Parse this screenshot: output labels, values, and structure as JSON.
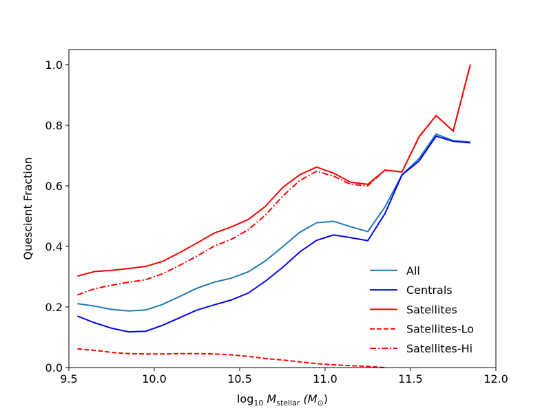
{
  "chart_data": {
    "type": "line",
    "xlabel": [
      "log",
      "10",
      " M",
      "stellar",
      " (M",
      "⊙",
      ")"
    ],
    "ylabel": "Quescient Fraction",
    "x": [
      9.55,
      9.65,
      9.75,
      9.85,
      9.95,
      10.05,
      10.15,
      10.25,
      10.35,
      10.45,
      10.55,
      10.65,
      10.75,
      10.85,
      10.95,
      11.05,
      11.15,
      11.25,
      11.35,
      11.45,
      11.55,
      11.65,
      11.75,
      11.85
    ],
    "series": [
      {
        "name": "All",
        "color": "#1f77b4",
        "style": "solid",
        "values": [
          0.211,
          0.203,
          0.192,
          0.187,
          0.19,
          0.209,
          0.235,
          0.262,
          0.282,
          0.295,
          0.316,
          0.352,
          0.398,
          0.446,
          0.478,
          0.483,
          0.465,
          0.449,
          0.53,
          0.636,
          0.69,
          0.771,
          0.749,
          0.745
        ]
      },
      {
        "name": "Centrals",
        "color": "#0000ff",
        "style": "solid",
        "values": [
          0.17,
          0.148,
          0.13,
          0.118,
          0.12,
          0.14,
          0.165,
          0.19,
          0.207,
          0.223,
          0.246,
          0.285,
          0.33,
          0.381,
          0.42,
          0.438,
          0.429,
          0.419,
          0.508,
          0.636,
          0.682,
          0.764,
          0.747,
          0.742
        ]
      },
      {
        "name": "Satellites",
        "color": "#ff0000",
        "style": "solid",
        "values": [
          0.302,
          0.317,
          0.321,
          0.327,
          0.334,
          0.351,
          0.38,
          0.411,
          0.444,
          0.464,
          0.489,
          0.532,
          0.594,
          0.636,
          0.662,
          0.642,
          0.612,
          0.605,
          0.652,
          0.646,
          0.762,
          0.832,
          0.781,
          1.0
        ]
      },
      {
        "name": "Satellites-Lo",
        "color": "#ff0000",
        "style": "dashed",
        "values": [
          0.062,
          0.057,
          0.05,
          0.046,
          0.045,
          0.045,
          0.046,
          0.046,
          0.045,
          0.042,
          0.037,
          0.03,
          0.025,
          0.019,
          0.013,
          0.009,
          0.006,
          0.004,
          0.0,
          null,
          null,
          null,
          null,
          null
        ]
      },
      {
        "name": "Satellites-Hi",
        "color": "#ff0000",
        "style": "dashdot",
        "values": [
          0.24,
          0.26,
          0.272,
          0.282,
          0.29,
          0.31,
          0.338,
          0.368,
          0.401,
          0.423,
          0.455,
          0.503,
          0.565,
          0.617,
          0.648,
          0.632,
          0.605,
          0.6,
          0.652,
          0.646,
          0.762,
          0.832,
          0.781,
          1.0
        ]
      }
    ],
    "xlim": [
      9.5,
      12.0
    ],
    "ylim": [
      0,
      1.05
    ],
    "xticks": [
      {
        "value": 9.5,
        "label": "9.5"
      },
      {
        "value": 10,
        "label": "10.0"
      },
      {
        "value": 10.5,
        "label": "10.5"
      },
      {
        "value": 11,
        "label": "11.0"
      },
      {
        "value": 11.5,
        "label": "11.5"
      },
      {
        "value": 12,
        "label": "12.0"
      }
    ],
    "yticks": [
      {
        "value": 0,
        "label": "0.0"
      },
      {
        "value": 0.2,
        "label": "0.2"
      },
      {
        "value": 0.4,
        "label": "0.4"
      },
      {
        "value": 0.6,
        "label": "0.6"
      },
      {
        "value": 0.8,
        "label": "0.8"
      },
      {
        "value": 1,
        "label": "1.0"
      }
    ],
    "grid": false,
    "legend": "lower right"
  }
}
